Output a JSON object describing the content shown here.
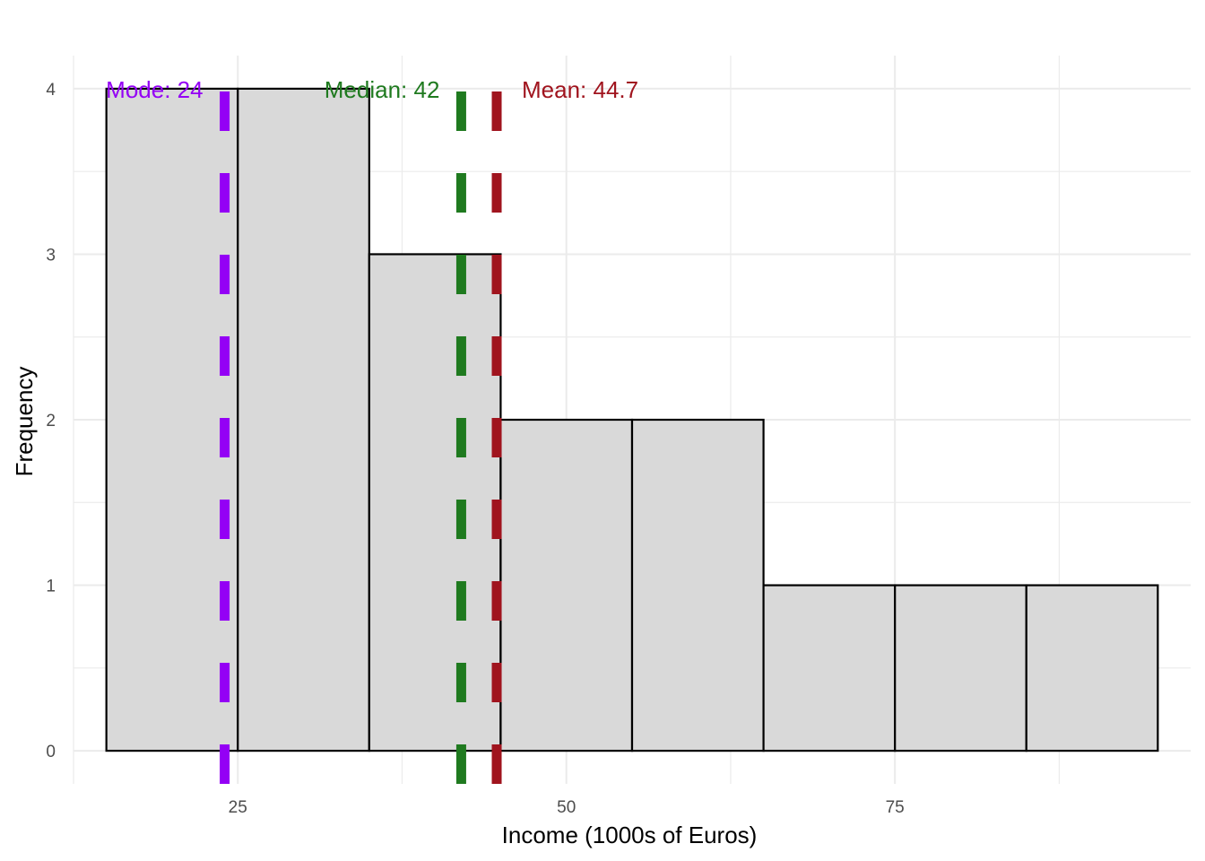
{
  "chart_data": {
    "type": "histogram",
    "title": "",
    "xlabel": "Income (1000s of Euros)",
    "ylabel": "Frequency",
    "xlim": [
      12.5,
      97.5
    ],
    "ylim": [
      -0.2,
      4.2
    ],
    "x_ticks": [
      25,
      50,
      75
    ],
    "y_ticks": [
      0,
      1,
      2,
      3,
      4
    ],
    "grid": true,
    "legend": "none",
    "bar_fill": "#d9d9d9",
    "bar_stroke": "#000000",
    "bins": [
      {
        "start": 15,
        "end": 25,
        "count": 4
      },
      {
        "start": 25,
        "end": 35,
        "count": 4
      },
      {
        "start": 35,
        "end": 45,
        "count": 3
      },
      {
        "start": 45,
        "end": 55,
        "count": 2
      },
      {
        "start": 55,
        "end": 65,
        "count": 2
      },
      {
        "start": 65,
        "end": 75,
        "count": 1
      },
      {
        "start": 75,
        "end": 85,
        "count": 1
      },
      {
        "start": 85,
        "end": 95,
        "count": 1
      }
    ],
    "reference_lines": [
      {
        "name": "mode",
        "value": 24,
        "label": "Mode: 24",
        "color": "#9400f5",
        "label_anchor": "end"
      },
      {
        "name": "median",
        "value": 42,
        "label": "Median: 42",
        "color": "#1f7a1f",
        "label_anchor": "end"
      },
      {
        "name": "mean",
        "value": 44.7,
        "label": "Mean: 44.7",
        "color": "#a0141e",
        "label_anchor": "start"
      }
    ]
  }
}
